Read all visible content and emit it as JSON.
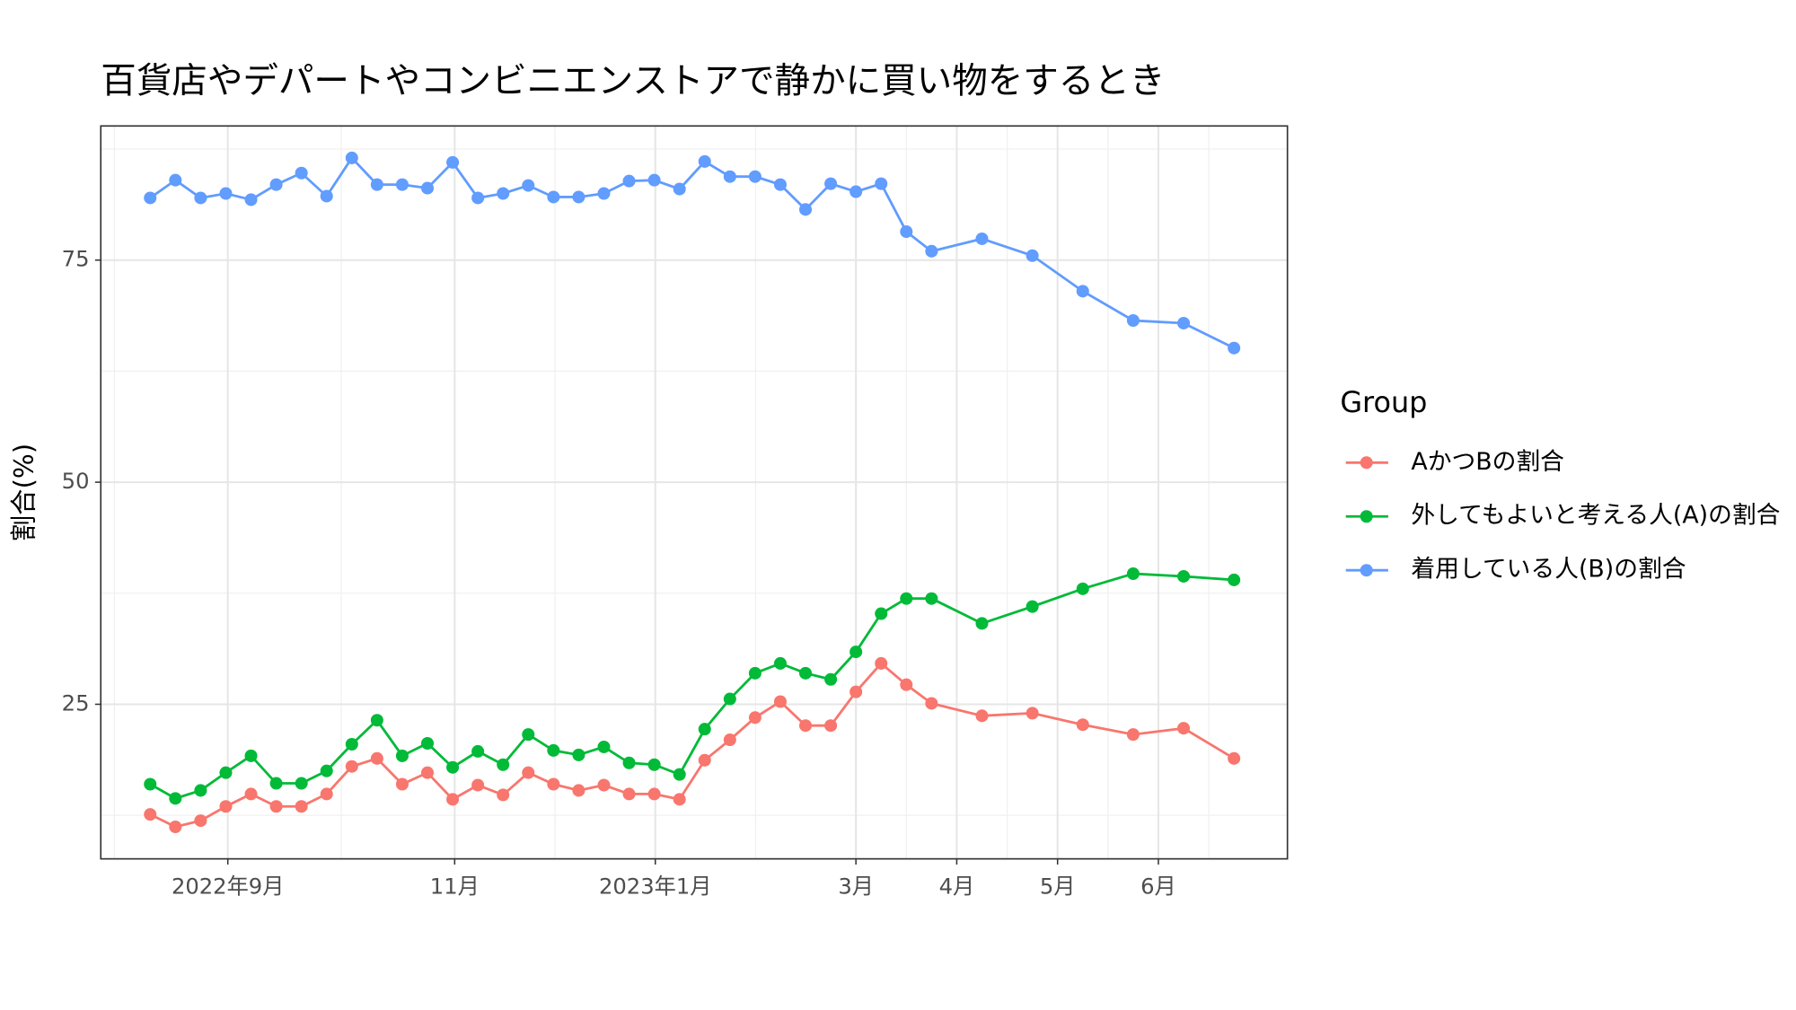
{
  "chart_data": {
    "type": "line",
    "title": "百貨店やデパートやコンビニエンストアで静かに買い物をするとき",
    "y_label": "割合(%)",
    "legend_title": "Group",
    "legend": "right",
    "grid": true,
    "x": [
      8,
      8.25,
      8.5,
      8.75,
      9,
      9.25,
      9.5,
      9.75,
      10,
      10.25,
      10.5,
      10.75,
      11,
      11.25,
      11.5,
      11.75,
      12,
      12.25,
      12.5,
      12.75,
      13,
      13.25,
      13.5,
      13.75,
      14,
      14.25,
      14.5,
      14.75,
      15,
      15.25,
      15.5,
      15.75,
      16.25,
      16.75,
      17.25,
      17.75,
      18.25,
      18.75
    ],
    "xlim": [
      7.51,
      19.28
    ],
    "xticks": [
      {
        "value": 8.77,
        "label": "2022年9月"
      },
      {
        "value": 11.02,
        "label": "11月"
      },
      {
        "value": 13.01,
        "label": "2023年1月"
      },
      {
        "value": 15,
        "label": "3月"
      },
      {
        "value": 16,
        "label": "4月"
      },
      {
        "value": 17,
        "label": "5月"
      },
      {
        "value": 18,
        "label": "6月"
      }
    ],
    "ylim": [
      7.6,
      90.1
    ],
    "yticks": [
      25,
      50,
      75
    ],
    "series": [
      {
        "name": "AかつBの割合",
        "color": "#F8766D",
        "values": [
          12.6,
          11.2,
          11.9,
          13.5,
          14.9,
          13.5,
          13.5,
          14.9,
          18.0,
          18.9,
          16.0,
          17.3,
          14.3,
          15.9,
          14.8,
          17.3,
          16.0,
          15.3,
          15.9,
          14.9,
          14.9,
          14.3,
          18.7,
          21.0,
          23.5,
          25.3,
          22.6,
          22.6,
          26.4,
          29.6,
          27.2,
          25.1,
          23.7,
          24.0,
          22.7,
          21.6,
          22.3,
          18.9
        ]
      },
      {
        "name": "外してもよいと考える人(A)の割合",
        "color": "#00BA38",
        "values": [
          16.0,
          14.4,
          15.3,
          17.3,
          19.2,
          16.1,
          16.1,
          17.5,
          20.5,
          23.2,
          19.2,
          20.6,
          17.9,
          19.7,
          18.2,
          21.6,
          19.8,
          19.3,
          20.2,
          18.4,
          18.2,
          17.1,
          22.2,
          25.6,
          28.5,
          29.6,
          28.5,
          27.8,
          30.9,
          35.2,
          36.9,
          36.9,
          34.1,
          36.0,
          38.0,
          39.7,
          39.4,
          39.0
        ]
      },
      {
        "name": "着用している人(B)の割合",
        "color": "#619CFF",
        "values": [
          82.0,
          84.0,
          82.0,
          82.5,
          81.8,
          83.5,
          84.8,
          82.2,
          86.5,
          83.5,
          83.5,
          83.1,
          86.0,
          82.0,
          82.5,
          83.4,
          82.1,
          82.1,
          82.5,
          83.9,
          84.0,
          83.0,
          86.1,
          84.4,
          84.4,
          83.5,
          80.7,
          83.6,
          82.7,
          83.6,
          78.2,
          76.0,
          77.4,
          75.5,
          71.5,
          68.2,
          67.9,
          65.1
        ]
      }
    ]
  }
}
